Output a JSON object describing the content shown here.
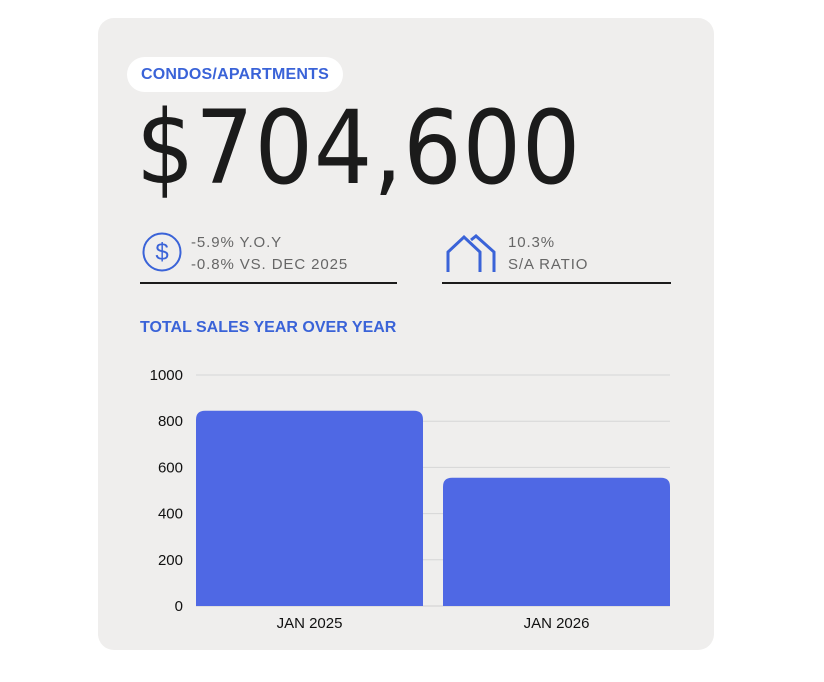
{
  "category_label": "CONDOS/APARTMENTS",
  "median_price": "$704,600",
  "stats": {
    "yoy": "-5.9% Y.O.Y",
    "vs_prev": "-0.8% VS. DEC 2025",
    "ratio_value": "10.3%",
    "ratio_label": "S/A RATIO"
  },
  "icons": {
    "left": "dollar-circle-icon",
    "right": "house-outline-icon"
  },
  "colors": {
    "accent": "#3a63d8",
    "bar": "#4f68e4",
    "card": "#efeeed"
  },
  "chart_data": {
    "type": "bar",
    "title": "TOTAL SALES YEAR OVER YEAR",
    "categories": [
      "JAN 2025",
      "JAN 2026"
    ],
    "values": [
      845,
      555
    ],
    "xlabel": "",
    "ylabel": "",
    "ylim": [
      0,
      1000
    ],
    "yticks": [
      0,
      200,
      400,
      600,
      800,
      1000
    ],
    "grid": true,
    "legend": "none"
  }
}
